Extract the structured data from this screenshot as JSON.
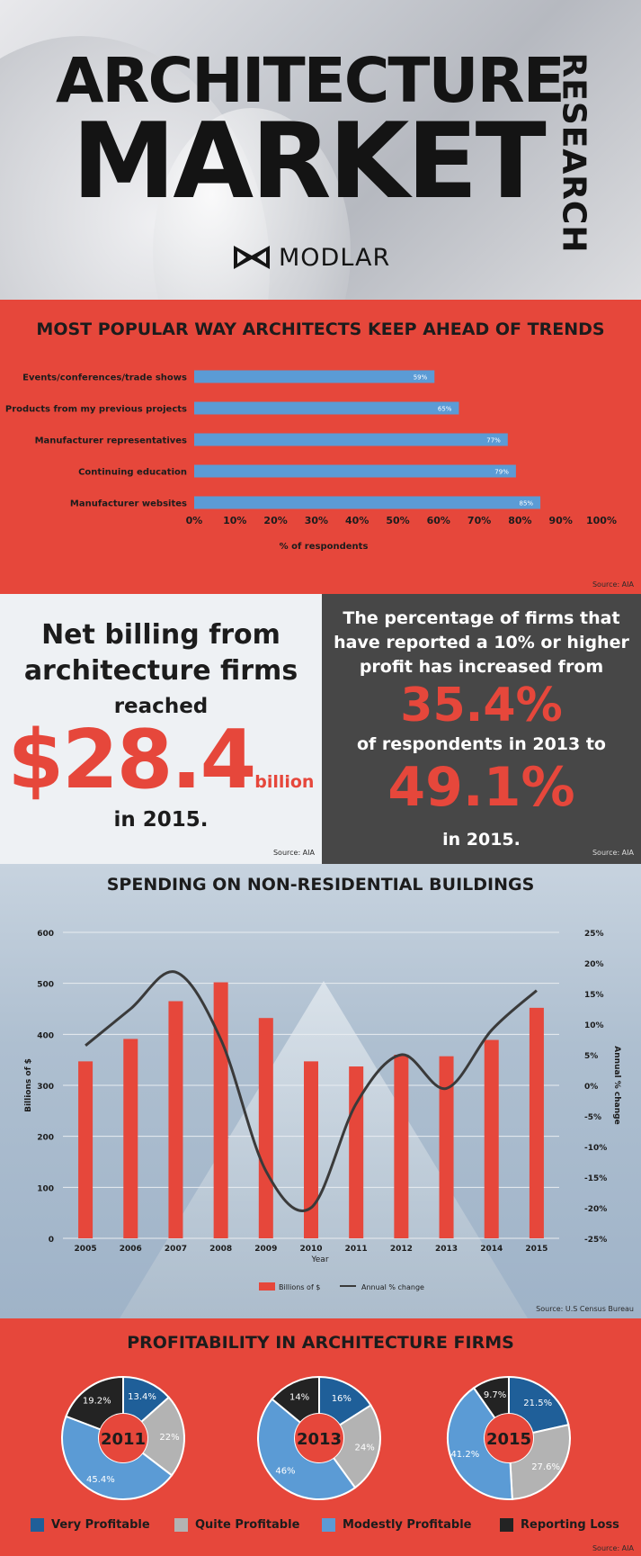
{
  "header": {
    "title_line1": "ARCHITECTURE",
    "title_line2": "MARKET",
    "title_side": "RESEARCH",
    "logo_text": "MODLAR",
    "logo_icon": "bowtie-logo-icon"
  },
  "trends": {
    "title": "MOST POPULAR WAY ARCHITECTS KEEP AHEAD OF TRENDS",
    "source": "Source: AIA"
  },
  "billing": {
    "line1": "Net billing from",
    "line2": "architecture firms",
    "line3": "reached",
    "amount": "$28.4",
    "unit": "billion",
    "line4": "in 2015.",
    "source": "Source: AIA"
  },
  "profit_pct": {
    "line1": "The percentage of firms that",
    "line2": "have reported a 10% or higher",
    "line3": "profit has increased from",
    "value1": "35.4%",
    "line4": "of respondents in 2013 to",
    "value2": "49.1%",
    "line5": "in 2015.",
    "source": "Source: AIA"
  },
  "spending": {
    "title": "SPENDING ON NON-RESIDENTIAL BUILDINGS",
    "source": "Source: U.S Census Bureau"
  },
  "profitability": {
    "title": "PROFITABILITY IN ARCHITECTURE FIRMS",
    "source": "Source: AIA",
    "legend": [
      "Very Profitable",
      "Quite Profitable",
      "Modestly Profitable",
      "Reporting Loss"
    ]
  },
  "colors": {
    "red": "#e6473b",
    "blue_bar": "#5b9bd5",
    "very_profitable": "#1f5f99",
    "quite_profitable": "#b3b3b3",
    "modestly_profitable": "#5b9bd5",
    "reporting_loss": "#232323",
    "dark_panel": "#474747"
  },
  "chart_data": [
    {
      "type": "bar",
      "orientation": "horizontal",
      "title": "MOST POPULAR WAY ARCHITECTS KEEP AHEAD OF TRENDS",
      "categories": [
        "Events/conferences/trade shows",
        "Products from my previous projects",
        "Manufacturer representatives",
        "Continuing education",
        "Manufacturer websites"
      ],
      "values": [
        59,
        65,
        77,
        79,
        85
      ],
      "data_labels": [
        "59%",
        "65%",
        "77%",
        "79%",
        "85%"
      ],
      "xlabel": "% of respondents",
      "xlim": [
        0,
        100
      ],
      "xticks": [
        "0%",
        "10%",
        "20%",
        "30%",
        "40%",
        "50%",
        "60%",
        "70%",
        "80%",
        "90%",
        "100%"
      ]
    },
    {
      "type": "bar",
      "title": "SPENDING ON NON-RESIDENTIAL BUILDINGS",
      "categories": [
        "2005",
        "2006",
        "2007",
        "2008",
        "2009",
        "2010",
        "2011",
        "2012",
        "2013",
        "2014",
        "2015"
      ],
      "series": [
        {
          "name": "Billions of $",
          "type": "bar",
          "axis": "left",
          "values": [
            347,
            391,
            465,
            502,
            432,
            347,
            337,
            360,
            357,
            389,
            452
          ]
        },
        {
          "name": "Annual % change",
          "type": "line",
          "axis": "right",
          "values": [
            6.5,
            12.5,
            18.5,
            7.5,
            -14,
            -20,
            -3,
            5,
            -0.5,
            9,
            15.5
          ]
        }
      ],
      "xlabel": "Year",
      "ylabel": "Billions of $",
      "ylabel_right": "Annual % change",
      "ylim": [
        0,
        600
      ],
      "ylim_right": [
        -25,
        25
      ],
      "yticks": [
        "0",
        "100",
        "200",
        "300",
        "400",
        "500",
        "600"
      ],
      "yticks_right": [
        "-25%",
        "-20%",
        "-15%",
        "-10%",
        "-5%",
        "0%",
        "5%",
        "10%",
        "15%",
        "20%",
        "25%"
      ],
      "legend": "bottom"
    },
    {
      "type": "pie",
      "style": "donut",
      "title": "2011",
      "labels": [
        "Very Profitable",
        "Quite Profitable",
        "Modestly Profitable",
        "Reporting Loss"
      ],
      "values": [
        13.4,
        22,
        45.4,
        19.2
      ],
      "data_labels": [
        "13.4%",
        "22%",
        "45.4%",
        "19.2%"
      ]
    },
    {
      "type": "pie",
      "style": "donut",
      "title": "2013",
      "labels": [
        "Very Profitable",
        "Quite Profitable",
        "Modestly Profitable",
        "Reporting Loss"
      ],
      "values": [
        16,
        24,
        46,
        14
      ],
      "data_labels": [
        "16%",
        "24%",
        "46%",
        "14%"
      ]
    },
    {
      "type": "pie",
      "style": "donut",
      "title": "2015",
      "labels": [
        "Very Profitable",
        "Quite Profitable",
        "Modestly Profitable",
        "Reporting Loss"
      ],
      "values": [
        21.5,
        27.6,
        41.2,
        9.7
      ],
      "data_labels": [
        "21.5%",
        "27.6%",
        "41.2%",
        "9.7%"
      ]
    }
  ]
}
